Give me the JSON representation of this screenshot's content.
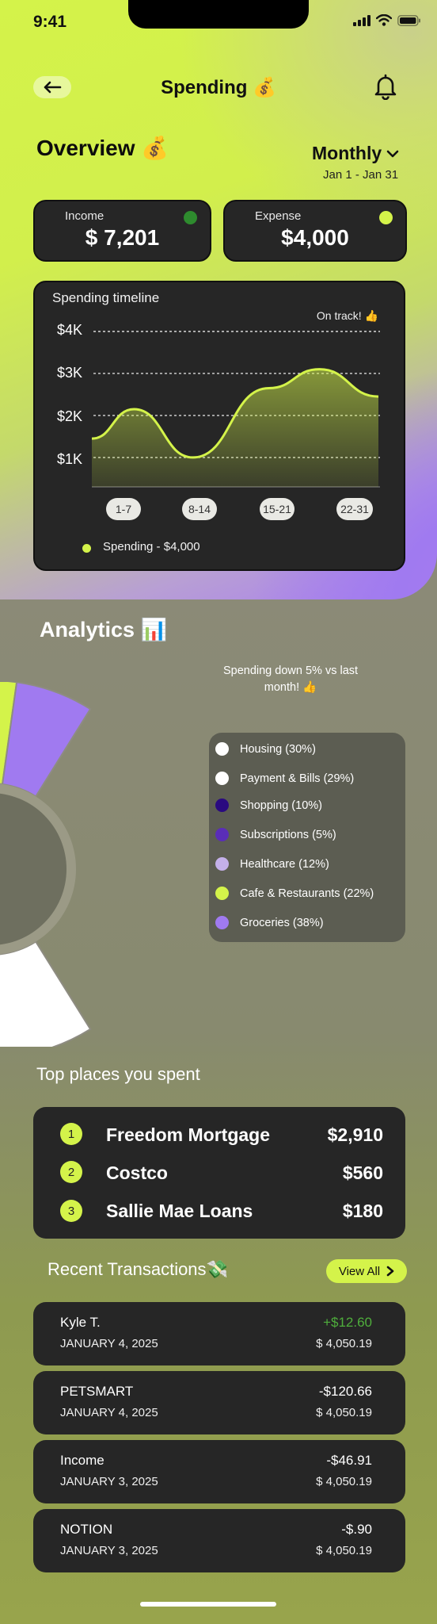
{
  "status": {
    "time": "9:41"
  },
  "header": {
    "title": "Spending 💰"
  },
  "overview": {
    "title": "Overview 💰",
    "period": "Monthly",
    "date_range": "Jan 1 - Jan 31",
    "income": {
      "label": "Income",
      "value": "$ 7,201",
      "dot_color": "#2e8b2e"
    },
    "expense": {
      "label": "Expense",
      "value": "$4,000",
      "dot_color": "#d4f34a"
    }
  },
  "timeline": {
    "title": "Spending timeline",
    "status": "On track! 👍",
    "y_labels": [
      "$4K",
      "$3K",
      "$2K",
      "$1K"
    ],
    "x_labels": [
      "1-7",
      "8-14",
      "15-21",
      "22-31"
    ],
    "legend": "Spending - $4,000"
  },
  "chart_data": {
    "type": "area",
    "title": "Spending timeline",
    "categories": [
      "1-7",
      "8-14",
      "15-21",
      "22-31"
    ],
    "series": [
      {
        "name": "Spending - $4,000",
        "x": [
          0,
          0.5,
          1.2,
          2.1,
          2.7,
          3.4
        ],
        "values": [
          1450,
          2150,
          1000,
          2650,
          3100,
          2450
        ]
      }
    ],
    "ylim": [
      300,
      4000
    ],
    "y_ticks": [
      1000,
      2000,
      3000,
      4000
    ],
    "grid": true,
    "accent_color": "#d4f34a"
  },
  "analytics": {
    "title": "Analytics 📊",
    "note": "Spending down 5% vs last month! 👍",
    "categories": [
      {
        "label": "Housing (30%)",
        "color": "#ffffff"
      },
      {
        "label": "Payment & Bills (29%)",
        "color": "#ffffff"
      },
      {
        "label": "Shopping (10%)",
        "color": "#2a0a80"
      },
      {
        "label": "Subscriptions (5%)",
        "color": "#5a2db8"
      },
      {
        "label": "Healthcare (12%)",
        "color": "#c4b0ea"
      },
      {
        "label": "Cafe & Restaurants (22%)",
        "color": "#d4f34a"
      },
      {
        "label": "Groceries (38%)",
        "color": "#a07af0"
      }
    ]
  },
  "top_places": {
    "title": "Top places you spent",
    "items": [
      {
        "rank": "1",
        "name": "Freedom Mortgage",
        "amount": "$2,910"
      },
      {
        "rank": "2",
        "name": "Costco",
        "amount": "$560"
      },
      {
        "rank": "3",
        "name": "Sallie Mae Loans",
        "amount": "$180"
      }
    ]
  },
  "recent": {
    "title": "Recent Transactions💸",
    "view_all": "View All",
    "items": [
      {
        "name": "Kyle T.",
        "date": "JANUARY 4, 2025",
        "amount": "+$12.60",
        "balance": "$ 4,050.19"
      },
      {
        "name": "PETSMART",
        "date": "JANUARY 4, 2025",
        "amount": "-$120.66",
        "balance": "$ 4,050.19"
      },
      {
        "name": "Income",
        "date": "JANUARY 3, 2025",
        "amount": "-$46.91",
        "balance": "$ 4,050.19"
      },
      {
        "name": "NOTION",
        "date": "JANUARY 3, 2025",
        "amount": "-$.90",
        "balance": "$ 4,050.19"
      }
    ]
  }
}
